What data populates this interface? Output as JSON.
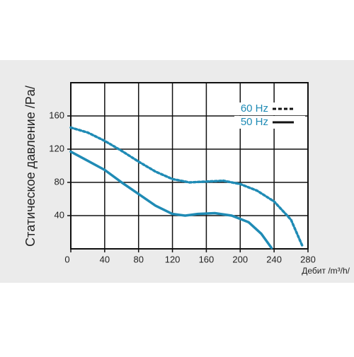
{
  "chart_data": {
    "type": "line",
    "y_label": "Статическое давление /Pa/",
    "x_label": "Дебит /m³/h/",
    "xlim": [
      0,
      280
    ],
    "xticks": [
      0,
      40,
      80,
      120,
      160,
      200,
      240,
      280
    ],
    "ylim": [
      0,
      200
    ],
    "yticks": [
      40,
      80,
      120,
      160
    ],
    "grid": true,
    "legend": "upper right",
    "series": [
      {
        "name": "60 Hz",
        "color": "#1f8bb5",
        "style": "dashed",
        "x": [
          0,
          20,
          40,
          60,
          80,
          100,
          120,
          140,
          160,
          180,
          200,
          220,
          240,
          260,
          274
        ],
        "values": [
          146,
          140,
          130,
          118,
          105,
          93,
          84,
          80,
          81,
          82,
          78,
          70,
          57,
          35,
          2
        ]
      },
      {
        "name": "50 Hz",
        "color": "#1f8bb5",
        "style": "solid",
        "x": [
          0,
          20,
          40,
          60,
          80,
          100,
          120,
          135,
          150,
          170,
          190,
          210,
          225,
          237
        ],
        "values": [
          117,
          106,
          95,
          80,
          66,
          52,
          42,
          40,
          42,
          43,
          40,
          32,
          18,
          1
        ]
      }
    ]
  }
}
